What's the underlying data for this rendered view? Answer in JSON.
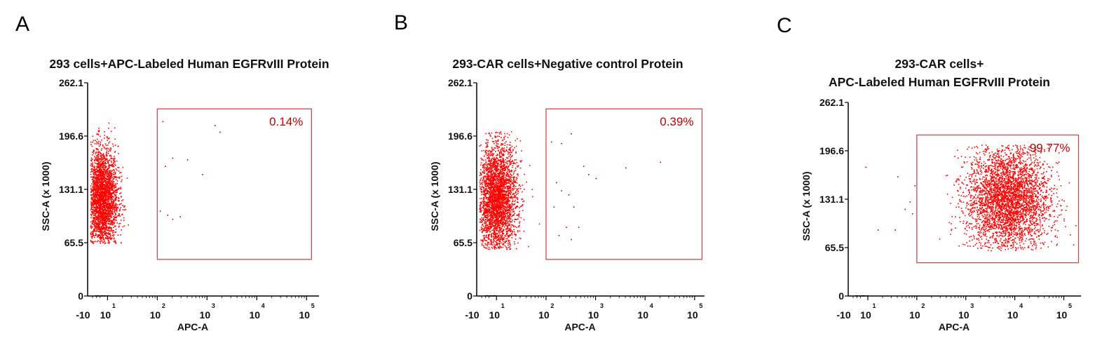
{
  "panels": [
    {
      "letter": "A",
      "title_lines": [
        "293 cells+APC-Labeled Human EGFRvIII Protein"
      ],
      "gate_label": "0.14%"
    },
    {
      "letter": "B",
      "title_lines": [
        "293-CAR cells+Negative control Protein"
      ],
      "gate_label": "0.39%"
    },
    {
      "letter": "C",
      "title_lines": [
        "293-CAR cells+",
        "APC-Labeled Human EGFRvIII Protein"
      ],
      "gate_label": "99.77%"
    }
  ],
  "colors": {
    "dots": "#ff0000",
    "gate": "#c0504d",
    "gate_text": "#c00000",
    "axis": "#000000"
  },
  "chart_data": [
    {
      "type": "scatter",
      "title": "293 cells+APC-Labeled Human EGFRvIII Protein",
      "xlabel": "APC-A",
      "ylabel": "SSC-A (x 1000)",
      "x_scale": "log",
      "x_tick_labels": [
        {
          "base": "-10",
          "exp": ""
        },
        {
          "base": "10",
          "exp": "1"
        },
        {
          "base": "10",
          "exp": "2"
        },
        {
          "base": "10",
          "exp": "3"
        },
        {
          "base": "10",
          "exp": "4"
        },
        {
          "base": "10",
          "exp": "5"
        }
      ],
      "y_ticks": [
        0,
        65.5,
        131.1,
        196.6,
        262.1
      ],
      "y_tick_labels": [
        "0",
        "65.5",
        "131.1",
        "196.6",
        "262.1"
      ],
      "ylim": [
        0,
        262.1
      ],
      "gate": {
        "x_range": [
          2.0,
          5.1
        ],
        "y_range": [
          45,
          230
        ],
        "percent": "0.14%"
      },
      "population": {
        "count": 2600,
        "x_center": 0.88,
        "x_sd": 0.16,
        "y_center": 120,
        "y_sd": 32,
        "y_min": 65,
        "y_max": 217
      },
      "stray_points": [
        [
          2.1,
          215
        ],
        [
          3.15,
          210
        ],
        [
          3.25,
          202
        ],
        [
          2.3,
          170
        ],
        [
          2.15,
          160
        ],
        [
          2.6,
          168
        ],
        [
          2.9,
          150
        ],
        [
          2.2,
          100
        ],
        [
          2.45,
          98
        ],
        [
          2.3,
          95
        ],
        [
          2.05,
          105
        ]
      ]
    },
    {
      "type": "scatter",
      "title": "293-CAR cells+Negative control Protein",
      "xlabel": "APC-A",
      "ylabel": "SSC-A (x 1000)",
      "x_scale": "log",
      "x_tick_labels": [
        {
          "base": "-10",
          "exp": ""
        },
        {
          "base": "10",
          "exp": "1"
        },
        {
          "base": "10",
          "exp": "2"
        },
        {
          "base": "10",
          "exp": "3"
        },
        {
          "base": "10",
          "exp": "4"
        },
        {
          "base": "10",
          "exp": "5"
        }
      ],
      "y_ticks": [
        0,
        65.5,
        131.1,
        196.6,
        262.1
      ],
      "y_tick_labels": [
        "0",
        "65.5",
        "131.1",
        "196.6",
        "262.1"
      ],
      "ylim": [
        0,
        262.1
      ],
      "gate": {
        "x_range": [
          2.0,
          5.15
        ],
        "y_range": [
          45,
          230
        ],
        "percent": "0.39%"
      },
      "population": {
        "count": 3000,
        "x_center": 1.0,
        "x_sd": 0.2,
        "y_center": 120,
        "y_sd": 34,
        "y_min": 58,
        "y_max": 203
      },
      "stray_points": [
        [
          2.1,
          190
        ],
        [
          2.3,
          188
        ],
        [
          2.5,
          200
        ],
        [
          2.75,
          160
        ],
        [
          2.85,
          150
        ],
        [
          3.0,
          145
        ],
        [
          3.6,
          158
        ],
        [
          4.3,
          165
        ],
        [
          2.2,
          140
        ],
        [
          2.45,
          125
        ],
        [
          2.55,
          110
        ],
        [
          2.3,
          130
        ],
        [
          2.15,
          110
        ],
        [
          2.65,
          85
        ],
        [
          2.4,
          85
        ],
        [
          2.25,
          75
        ],
        [
          2.5,
          70
        ]
      ]
    },
    {
      "type": "scatter",
      "title": "293-CAR cells+ APC-Labeled Human EGFRvIII Protein",
      "xlabel": "APC-A",
      "ylabel": "SSC-A (x 1000)",
      "x_scale": "log",
      "x_tick_labels": [
        {
          "base": "-10",
          "exp": ""
        },
        {
          "base": "10",
          "exp": "1"
        },
        {
          "base": "10",
          "exp": "2"
        },
        {
          "base": "10",
          "exp": "3"
        },
        {
          "base": "10",
          "exp": "4"
        },
        {
          "base": "10",
          "exp": "5"
        }
      ],
      "y_ticks": [
        0,
        65.5,
        131.1,
        196.6,
        262.1
      ],
      "y_tick_labels": [
        "0",
        "65.5",
        "131.1",
        "196.6",
        "262.1"
      ],
      "ylim": [
        0,
        262.1
      ],
      "gate": {
        "x_range": [
          2.0,
          5.3
        ],
        "y_range": [
          45,
          218
        ],
        "percent": "99.77%"
      },
      "population": {
        "count": 3600,
        "x_center": 3.85,
        "x_sd": 0.42,
        "y_center": 132,
        "y_sd": 36,
        "y_min": 62,
        "y_max": 205
      },
      "stray_points": [
        [
          0.95,
          175
        ],
        [
          1.6,
          162
        ],
        [
          1.9,
          112
        ],
        [
          1.55,
          90
        ],
        [
          1.2,
          90
        ],
        [
          1.85,
          128
        ],
        [
          1.75,
          118
        ],
        [
          1.95,
          150
        ]
      ]
    }
  ]
}
